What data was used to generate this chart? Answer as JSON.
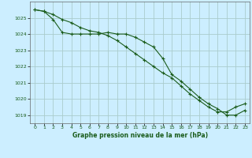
{
  "title": "Graphe pression niveau de la mer (hPa)",
  "background_color": "#cceeff",
  "grid_color": "#aacccc",
  "line_color": "#1a5c1a",
  "xlim": [
    -0.5,
    23.5
  ],
  "ylim": [
    1018.5,
    1026.0
  ],
  "yticks": [
    1019,
    1020,
    1021,
    1022,
    1023,
    1024,
    1025
  ],
  "xticks": [
    0,
    1,
    2,
    3,
    4,
    5,
    6,
    7,
    8,
    9,
    10,
    11,
    12,
    13,
    14,
    15,
    16,
    17,
    18,
    19,
    20,
    21,
    22,
    23
  ],
  "series1": [
    1025.5,
    1025.4,
    1024.9,
    1024.1,
    1024.0,
    1024.0,
    1024.0,
    1024.0,
    1024.1,
    1024.0,
    1024.0,
    1023.8,
    1023.5,
    1023.2,
    1022.5,
    1021.5,
    1021.1,
    1020.6,
    1020.1,
    1019.7,
    1019.4,
    1019.0,
    1019.0,
    1019.3
  ],
  "series2": [
    1025.5,
    1025.4,
    1025.2,
    1024.9,
    1024.7,
    1024.4,
    1024.2,
    1024.1,
    1023.9,
    1023.6,
    1023.2,
    1022.8,
    1022.4,
    1022.0,
    1021.6,
    1021.3,
    1020.8,
    1020.3,
    1019.9,
    1019.5,
    1019.2,
    1019.2,
    1019.5,
    1019.7
  ]
}
